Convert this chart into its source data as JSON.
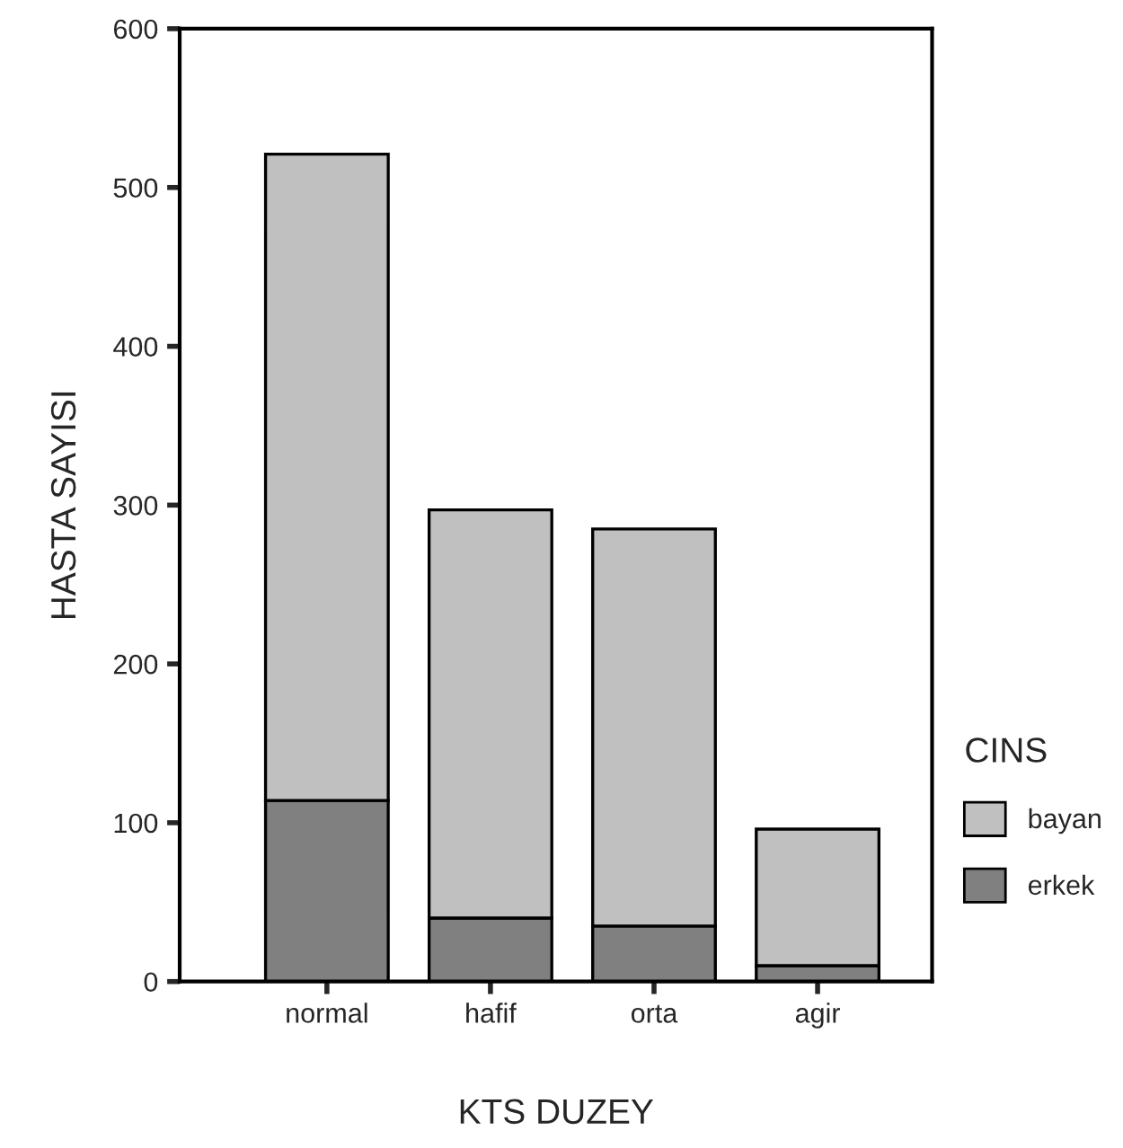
{
  "chart_data": {
    "type": "bar",
    "xlabel": "KTS DUZEY",
    "ylabel": "HASTA SAYISI",
    "legend_title": "CINS",
    "categories": [
      "normal",
      "hafif",
      "orta",
      "agir"
    ],
    "stacked": true,
    "ylim": [
      0,
      600
    ],
    "yticks": [
      0,
      100,
      200,
      300,
      400,
      500,
      600
    ],
    "grid": false,
    "legend": "right",
    "series": [
      {
        "name": "erkek",
        "color": "#808080",
        "values": [
          114,
          40,
          35,
          10
        ]
      },
      {
        "name": "bayan",
        "color": "#c0c0c0",
        "values": [
          407,
          257,
          250,
          86
        ]
      }
    ]
  }
}
